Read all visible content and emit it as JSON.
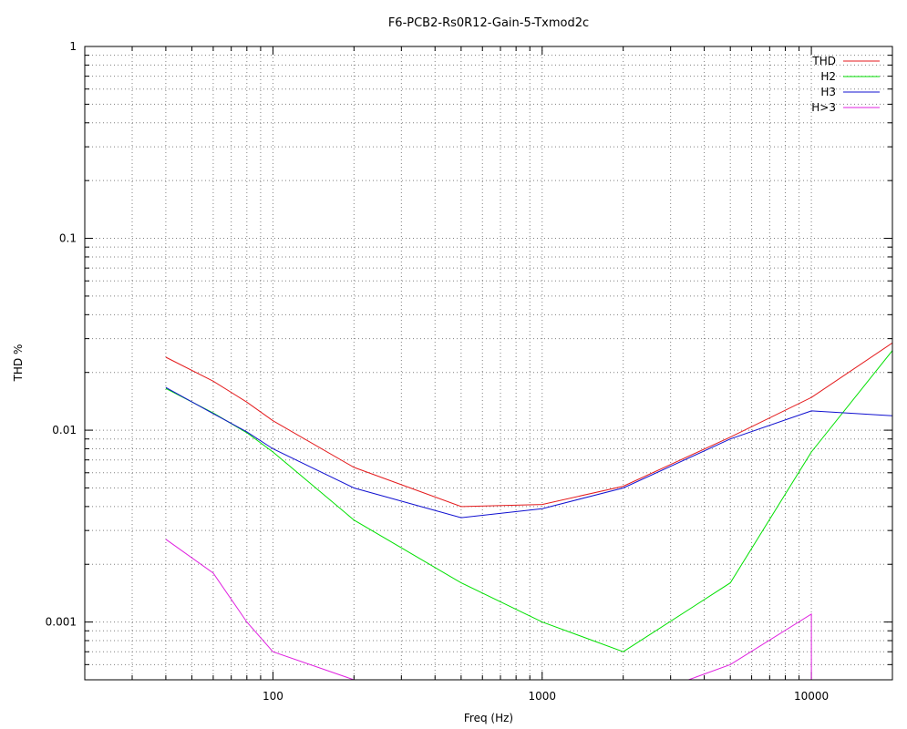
{
  "chart_data": {
    "type": "line",
    "title": "F6-PCB2-Rs0R12-Gain-5-Txmod2c",
    "xlabel": "Freq (Hz)",
    "ylabel": "THD %",
    "xscale": "log",
    "yscale": "log",
    "xlim": [
      20,
      20000
    ],
    "ylim": [
      0.0005,
      1
    ],
    "grid": true,
    "legend_position": "top-right",
    "x_tick_labels": [
      "100",
      "1000",
      "10000"
    ],
    "y_tick_labels": [
      "0.001",
      "0.01",
      "0.1",
      "1"
    ],
    "series": [
      {
        "name": "THD",
        "color": "#e41a1c",
        "x": [
          40,
          60,
          80,
          100,
          200,
          500,
          1000,
          2000,
          5000,
          10000,
          20000
        ],
        "y": [
          0.024,
          0.018,
          0.014,
          0.0112,
          0.0064,
          0.004,
          0.0041,
          0.0051,
          0.0092,
          0.0148,
          0.0285
        ]
      },
      {
        "name": "H2",
        "color": "#00e000",
        "x": [
          40,
          60,
          80,
          100,
          200,
          500,
          1000,
          2000,
          5000,
          10000,
          20000
        ],
        "y": [
          0.0165,
          0.0123,
          0.0097,
          0.0077,
          0.0034,
          0.0016,
          0.001,
          0.0007,
          0.0016,
          0.0077,
          0.026
        ]
      },
      {
        "name": "H3",
        "color": "#1010d0",
        "x": [
          40,
          60,
          80,
          100,
          200,
          500,
          1000,
          2000,
          5000,
          10000,
          20000
        ],
        "y": [
          0.0167,
          0.0122,
          0.0098,
          0.008,
          0.005,
          0.0035,
          0.0039,
          0.005,
          0.009,
          0.0126,
          0.0119
        ]
      },
      {
        "name": "H>3",
        "color": "#e020e0",
        "x": [
          40,
          60,
          80,
          100,
          200,
          3500,
          5000,
          10000,
          10000
        ],
        "y": [
          0.0027,
          0.0018,
          0.001,
          0.0007,
          0.0005,
          0.0005,
          0.0006,
          0.0011,
          0.0005
        ]
      }
    ]
  }
}
